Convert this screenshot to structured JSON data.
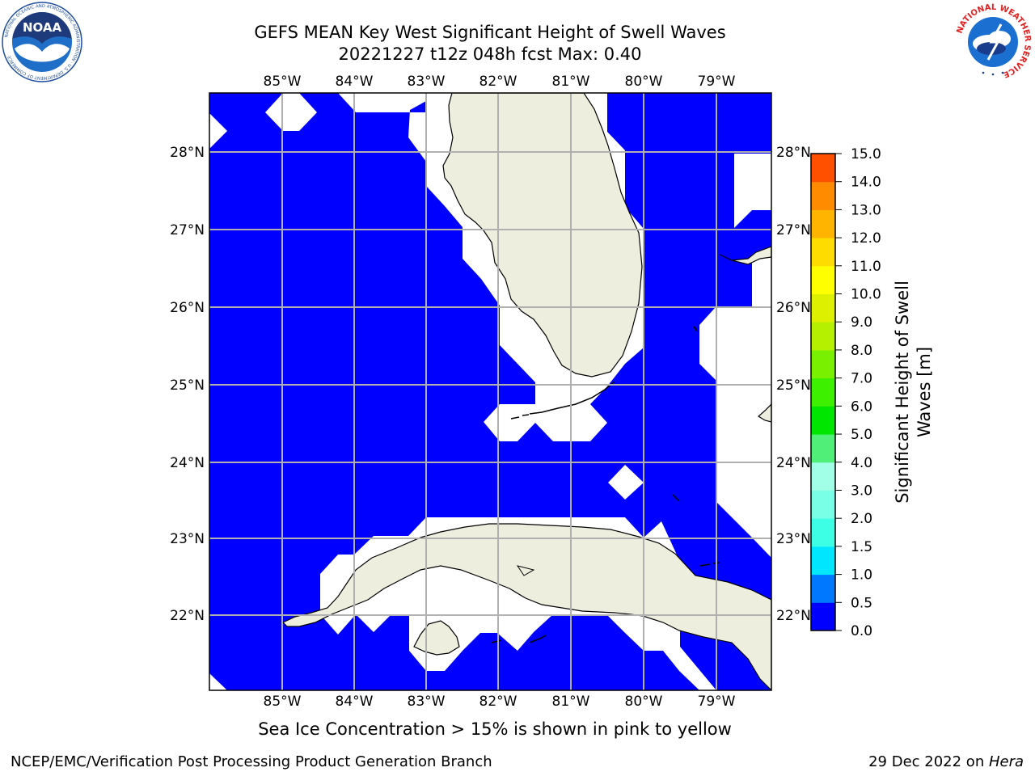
{
  "title": {
    "line1": "GEFS MEAN Key West Significant Height of Swell Waves",
    "line2": "20221227 t12z 048h fcst   Max: 0.40"
  },
  "map": {
    "longitude_labels": [
      "85°W",
      "84°W",
      "83°W",
      "82°W",
      "81°W",
      "80°W",
      "79°W"
    ],
    "latitude_labels": [
      "28°N",
      "27°N",
      "26°N",
      "25°N",
      "24°N",
      "23°N",
      "22°N"
    ],
    "colors": {
      "ocean": "#0000ff",
      "land": "#eeeedf",
      "no_data": "#ffffff",
      "grid": "#b0b0b0",
      "coastline": "#000000"
    }
  },
  "colorbar": {
    "title_line1": "Significant Height of Swell",
    "title_line2": "Waves [m]",
    "tick_labels": [
      "0.0",
      "0.5",
      "1.0",
      "1.5",
      "2.0",
      "3.0",
      "4.0",
      "5.0",
      "6.0",
      "7.0",
      "8.0",
      "9.0",
      "10.0",
      "11.0",
      "12.0",
      "13.0",
      "14.0",
      "15.0"
    ],
    "colors": [
      "#0000ff",
      "#0078ff",
      "#00e6ff",
      "#3cffe6",
      "#78ffe6",
      "#a0ffe6",
      "#50f078",
      "#00e600",
      "#3cf000",
      "#78f000",
      "#b4f000",
      "#dcf000",
      "#ffff00",
      "#ffdc00",
      "#ffb400",
      "#ff8c00",
      "#ff5000",
      "#ff0000"
    ]
  },
  "caption": "Sea Ice Concentration > 15% is shown in pink to yellow",
  "footer": {
    "left": "NCEP/EMC/Verification Post Processing Product Generation Branch",
    "right_date": "29 Dec 2022 on ",
    "right_host": "Hera"
  },
  "logos": {
    "noaa_text": "NOAA",
    "noaa_ring_text": "NATIONAL OCEANIC AND ATMOSPHERIC ADMINISTRATION · U.S. DEPARTMENT OF COMMERCE",
    "nws_ring_text": "NATIONAL WEATHER SERVICE"
  }
}
